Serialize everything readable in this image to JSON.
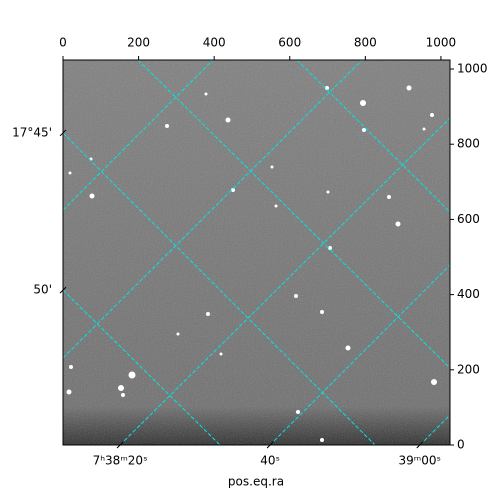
{
  "chart_data": {
    "type": "image",
    "xlabel": "pos.eq.ra",
    "xlim": [
      0,
      1024
    ],
    "ylim": [
      0,
      1024
    ],
    "xticks": [
      0,
      200,
      400,
      600,
      800,
      1000
    ],
    "yticks": [
      0,
      200,
      400,
      600,
      800,
      1000
    ],
    "ra_ticks": [
      {
        "value": 151,
        "label": "7ʰ38ᵐ20ˢ"
      },
      {
        "value": 548,
        "label": "40ˢ"
      },
      {
        "value": 944,
        "label": "39ᵐ00ˢ"
      }
    ],
    "dec_ticks": [
      {
        "value": 830,
        "label": "17°45'"
      },
      {
        "value": 412,
        "label": "50'"
      }
    ],
    "grid": true,
    "grid_color": "#00e5e5"
  }
}
